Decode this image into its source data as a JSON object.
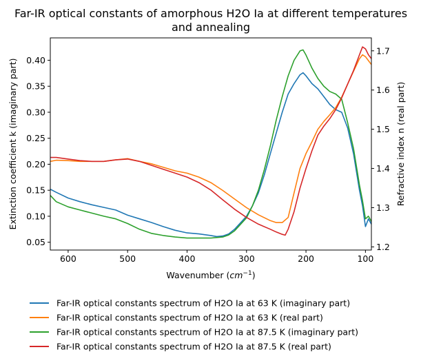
{
  "chart_data": {
    "type": "line",
    "title_lines": [
      "Far-IR optical constants of amorphous H2O Ia at different temperatures",
      "and annealing"
    ],
    "xlabel": "Wavenumber",
    "xlabel_unit_base": "cm",
    "xlabel_unit_exp": "−1",
    "ylabel_left": "Extinction coefficient k (imaginary part)",
    "ylabel_right": "Refractive index n (real part)",
    "x_reversed": true,
    "xlim": [
      630,
      90
    ],
    "ylim_left": [
      0.035,
      0.443
    ],
    "ylim_right": [
      1.192,
      1.733
    ],
    "x_ticks": [
      600,
      500,
      400,
      300,
      200,
      100
    ],
    "y_left_ticks": [
      0.05,
      0.1,
      0.15,
      0.2,
      0.25,
      0.3,
      0.35,
      0.4
    ],
    "y_left_tick_labels": [
      "0.05",
      "0.10",
      "0.15",
      "0.20",
      "0.25",
      "0.30",
      "0.35",
      "0.40"
    ],
    "y_right_ticks": [
      1.2,
      1.3,
      1.4,
      1.5,
      1.6,
      1.7
    ],
    "y_right_tick_labels": [
      "1.2",
      "1.3",
      "1.4",
      "1.5",
      "1.6",
      "1.7"
    ],
    "grid": false,
    "legend_position": "below plot",
    "series": [
      {
        "name": "Far-IR optical constants spectrum of H2O Ia at 63 K (imaginary part)",
        "color": "#1f77b4",
        "axis": "left",
        "points": [
          [
            630,
            0.152
          ],
          [
            620,
            0.146
          ],
          [
            600,
            0.135
          ],
          [
            580,
            0.128
          ],
          [
            560,
            0.122
          ],
          [
            540,
            0.117
          ],
          [
            520,
            0.112
          ],
          [
            500,
            0.102
          ],
          [
            480,
            0.095
          ],
          [
            460,
            0.088
          ],
          [
            440,
            0.08
          ],
          [
            420,
            0.073
          ],
          [
            400,
            0.068
          ],
          [
            380,
            0.066
          ],
          [
            360,
            0.063
          ],
          [
            350,
            0.061
          ],
          [
            340,
            0.062
          ],
          [
            330,
            0.066
          ],
          [
            320,
            0.075
          ],
          [
            300,
            0.1
          ],
          [
            290,
            0.12
          ],
          [
            280,
            0.145
          ],
          [
            270,
            0.18
          ],
          [
            260,
            0.22
          ],
          [
            250,
            0.26
          ],
          [
            240,
            0.3
          ],
          [
            230,
            0.335
          ],
          [
            220,
            0.355
          ],
          [
            210,
            0.372
          ],
          [
            205,
            0.376
          ],
          [
            200,
            0.37
          ],
          [
            190,
            0.355
          ],
          [
            180,
            0.345
          ],
          [
            170,
            0.33
          ],
          [
            160,
            0.315
          ],
          [
            150,
            0.305
          ],
          [
            140,
            0.3
          ],
          [
            130,
            0.27
          ],
          [
            120,
            0.22
          ],
          [
            110,
            0.15
          ],
          [
            105,
            0.12
          ],
          [
            100,
            0.08
          ],
          [
            95,
            0.095
          ],
          [
            90,
            0.085
          ]
        ]
      },
      {
        "name": "Far-IR optical constants spectrum of H2O Ia at 63 K (real part)",
        "color": "#ff7f0e",
        "axis": "right",
        "points": [
          [
            630,
            1.418
          ],
          [
            620,
            1.421
          ],
          [
            600,
            1.42
          ],
          [
            580,
            1.418
          ],
          [
            560,
            1.418
          ],
          [
            540,
            1.418
          ],
          [
            520,
            1.422
          ],
          [
            500,
            1.425
          ],
          [
            480,
            1.418
          ],
          [
            460,
            1.412
          ],
          [
            440,
            1.403
          ],
          [
            420,
            1.394
          ],
          [
            400,
            1.388
          ],
          [
            380,
            1.378
          ],
          [
            360,
            1.364
          ],
          [
            340,
            1.344
          ],
          [
            320,
            1.322
          ],
          [
            300,
            1.3
          ],
          [
            280,
            1.282
          ],
          [
            260,
            1.267
          ],
          [
            250,
            1.262
          ],
          [
            240,
            1.262
          ],
          [
            230,
            1.275
          ],
          [
            220,
            1.338
          ],
          [
            210,
            1.4
          ],
          [
            200,
            1.438
          ],
          [
            190,
            1.468
          ],
          [
            180,
            1.5
          ],
          [
            170,
            1.52
          ],
          [
            160,
            1.537
          ],
          [
            150,
            1.555
          ],
          [
            140,
            1.582
          ],
          [
            130,
            1.615
          ],
          [
            120,
            1.648
          ],
          [
            110,
            1.68
          ],
          [
            105,
            1.69
          ],
          [
            100,
            1.685
          ],
          [
            95,
            1.675
          ],
          [
            90,
            1.665
          ]
        ]
      },
      {
        "name": "Far-IR optical constants spectrum of H2O Ia at 87.5 K (imaginary part)",
        "color": "#2ca02c",
        "axis": "left",
        "points": [
          [
            630,
            0.14
          ],
          [
            620,
            0.128
          ],
          [
            600,
            0.118
          ],
          [
            580,
            0.112
          ],
          [
            560,
            0.106
          ],
          [
            540,
            0.1
          ],
          [
            520,
            0.095
          ],
          [
            500,
            0.086
          ],
          [
            480,
            0.075
          ],
          [
            460,
            0.067
          ],
          [
            440,
            0.063
          ],
          [
            420,
            0.06
          ],
          [
            400,
            0.058
          ],
          [
            380,
            0.058
          ],
          [
            360,
            0.058
          ],
          [
            340,
            0.06
          ],
          [
            330,
            0.064
          ],
          [
            320,
            0.072
          ],
          [
            300,
            0.097
          ],
          [
            290,
            0.12
          ],
          [
            280,
            0.15
          ],
          [
            270,
            0.19
          ],
          [
            260,
            0.235
          ],
          [
            250,
            0.285
          ],
          [
            240,
            0.33
          ],
          [
            230,
            0.37
          ],
          [
            220,
            0.4
          ],
          [
            210,
            0.418
          ],
          [
            205,
            0.42
          ],
          [
            200,
            0.41
          ],
          [
            190,
            0.385
          ],
          [
            180,
            0.365
          ],
          [
            170,
            0.35
          ],
          [
            160,
            0.34
          ],
          [
            150,
            0.335
          ],
          [
            140,
            0.325
          ],
          [
            130,
            0.28
          ],
          [
            120,
            0.23
          ],
          [
            110,
            0.16
          ],
          [
            105,
            0.13
          ],
          [
            100,
            0.095
          ],
          [
            95,
            0.1
          ],
          [
            90,
            0.09
          ]
        ]
      },
      {
        "name": "Far-IR optical constants spectrum of H2O Ia at 87.5 K (real part)",
        "color": "#d62728",
        "axis": "right",
        "points": [
          [
            630,
            1.428
          ],
          [
            620,
            1.428
          ],
          [
            600,
            1.424
          ],
          [
            580,
            1.42
          ],
          [
            560,
            1.418
          ],
          [
            540,
            1.418
          ],
          [
            520,
            1.422
          ],
          [
            500,
            1.424
          ],
          [
            480,
            1.418
          ],
          [
            460,
            1.408
          ],
          [
            440,
            1.398
          ],
          [
            420,
            1.388
          ],
          [
            400,
            1.378
          ],
          [
            380,
            1.364
          ],
          [
            360,
            1.345
          ],
          [
            340,
            1.32
          ],
          [
            320,
            1.296
          ],
          [
            300,
            1.275
          ],
          [
            280,
            1.258
          ],
          [
            260,
            1.245
          ],
          [
            250,
            1.238
          ],
          [
            240,
            1.232
          ],
          [
            235,
            1.23
          ],
          [
            230,
            1.245
          ],
          [
            220,
            1.29
          ],
          [
            210,
            1.35
          ],
          [
            200,
            1.4
          ],
          [
            190,
            1.445
          ],
          [
            180,
            1.485
          ],
          [
            170,
            1.508
          ],
          [
            160,
            1.527
          ],
          [
            150,
            1.55
          ],
          [
            140,
            1.58
          ],
          [
            130,
            1.615
          ],
          [
            120,
            1.65
          ],
          [
            110,
            1.69
          ],
          [
            105,
            1.71
          ],
          [
            100,
            1.705
          ],
          [
            95,
            1.69
          ],
          [
            90,
            1.68
          ]
        ]
      }
    ]
  }
}
